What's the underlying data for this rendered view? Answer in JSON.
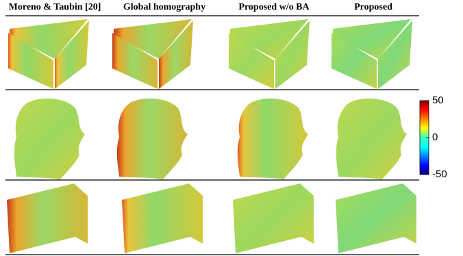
{
  "columns": [
    "Moreno & Taubin [20]",
    "Global homography",
    "Proposed w/o BA",
    "Proposed"
  ],
  "colorbar": {
    "lim": [
      -50,
      50
    ],
    "ticks": [
      50,
      0,
      -50
    ]
  }
}
